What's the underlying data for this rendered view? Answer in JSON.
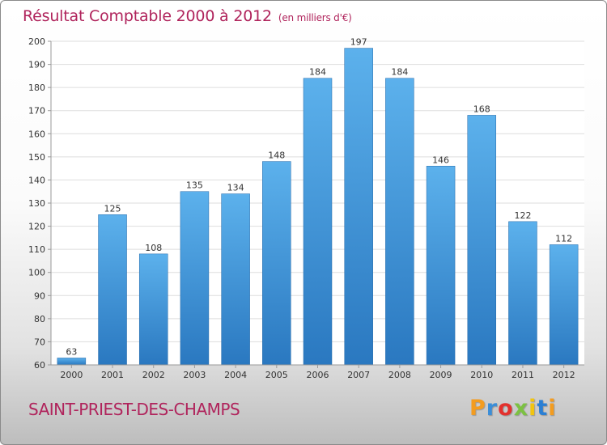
{
  "title": "Résultat Comptable 2000 à 2012",
  "subtitle": "(en milliers d'€)",
  "commune": "SAINT-PRIEST-DES-CHAMPS",
  "logo": {
    "letters": [
      "P",
      "r",
      "o",
      "x",
      "i",
      "t",
      "i"
    ]
  },
  "colors": {
    "bar": "#3a92d6",
    "title": "#b0245c",
    "axis": "#9a9a9a",
    "grid": "#dddddd"
  },
  "chart_data": {
    "type": "bar",
    "title": "Résultat Comptable 2000 à 2012",
    "subtitle": "(en milliers d'€)",
    "xlabel": "",
    "ylabel": "",
    "categories": [
      "2000",
      "2001",
      "2002",
      "2003",
      "2004",
      "2005",
      "2006",
      "2007",
      "2008",
      "2009",
      "2010",
      "2011",
      "2012"
    ],
    "values": [
      63,
      125,
      108,
      135,
      134,
      148,
      184,
      197,
      184,
      146,
      168,
      122,
      112
    ],
    "ylim": [
      60,
      200
    ],
    "yticks": [
      60,
      70,
      80,
      90,
      100,
      110,
      120,
      130,
      140,
      150,
      160,
      170,
      180,
      190,
      200
    ],
    "grid": true,
    "legend": "none"
  }
}
